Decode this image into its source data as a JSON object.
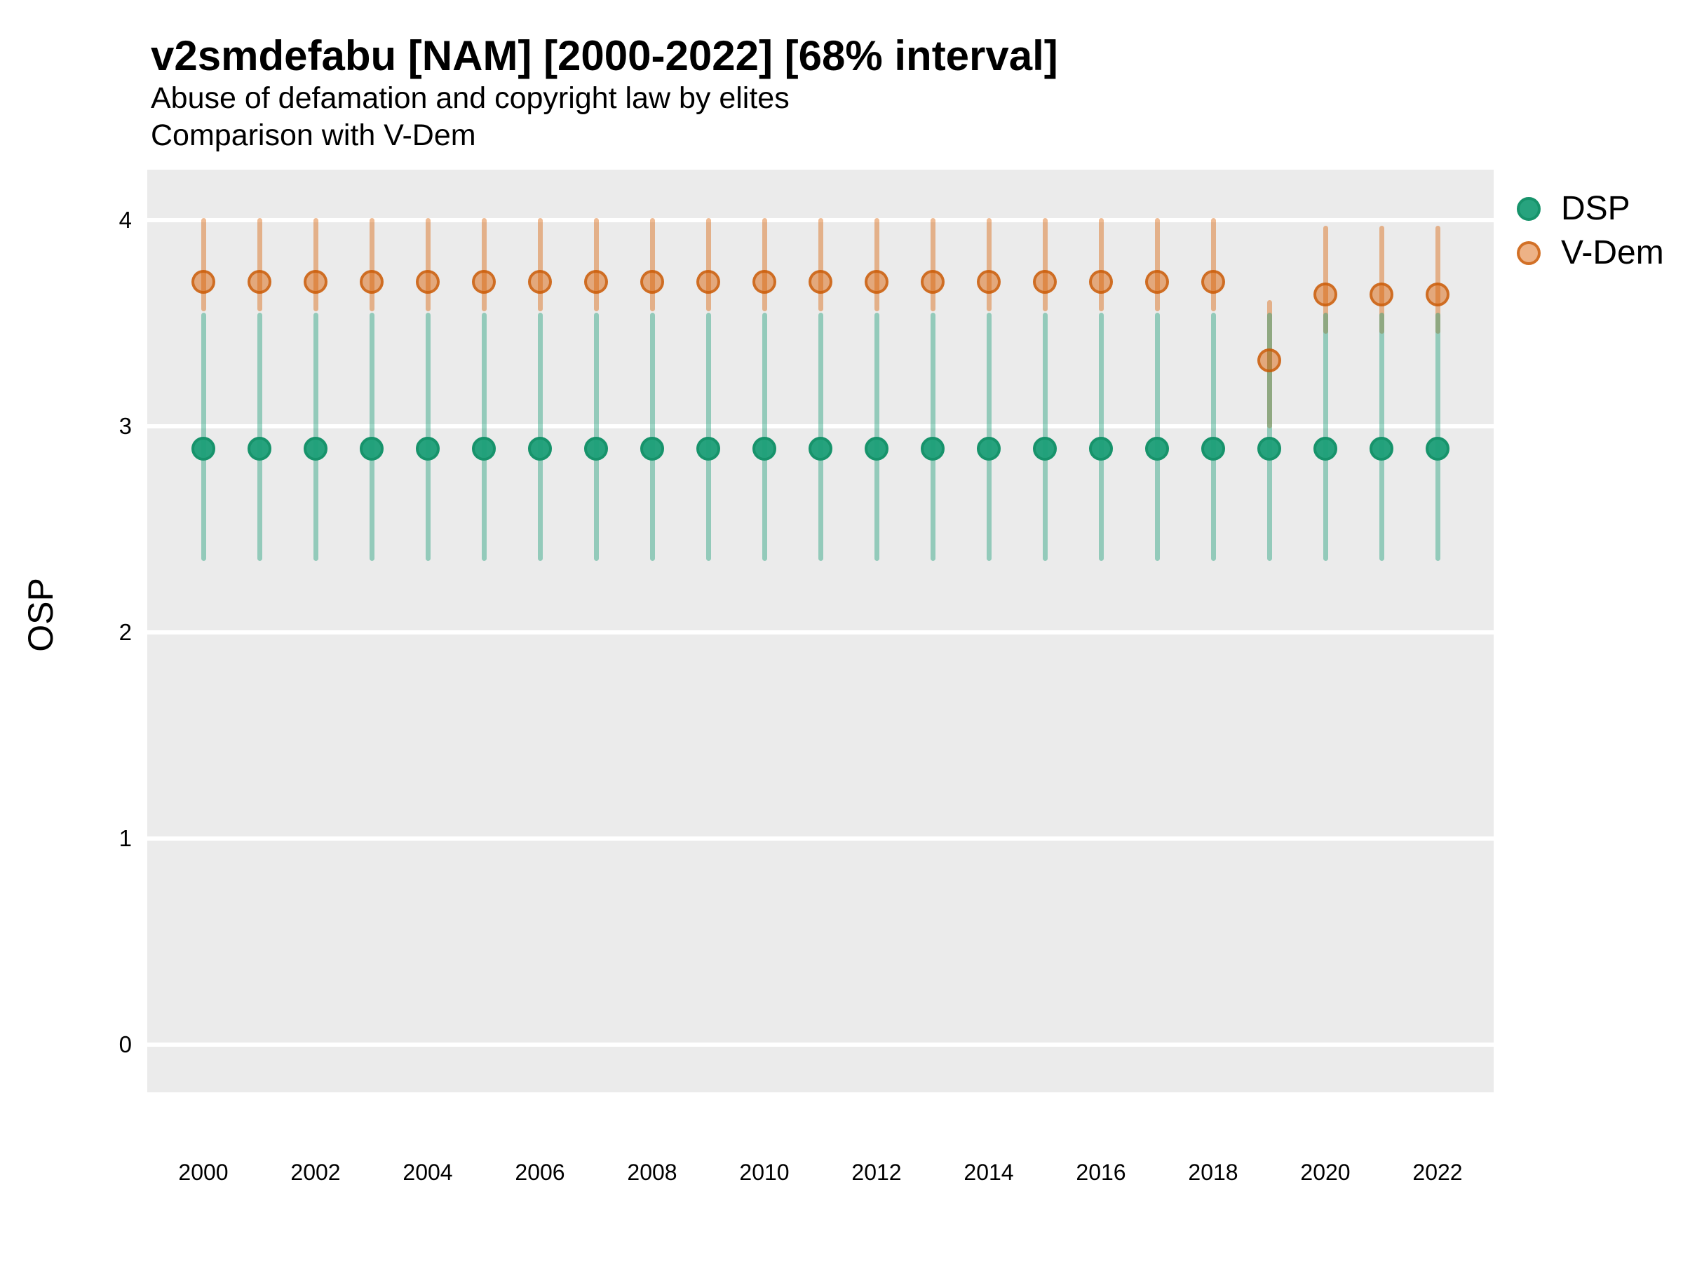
{
  "header": {
    "title": "v2smdefabu [NAM] [2000-2022] [68% interval]",
    "subtitle": "Abuse of defamation and copyright law by elites",
    "subtitle2": "Comparison with V-Dem"
  },
  "chart_data": {
    "type": "scatter",
    "title": "v2smdefabu [NAM] [2000-2022] [68% interval]",
    "subtitle": "Abuse of defamation and copyright law by elites",
    "note": "Comparison with V-Dem",
    "interval": "68%",
    "xlabel": "",
    "ylabel": "OSP",
    "ylim": [
      -0.23,
      4.25
    ],
    "yticks": [
      0,
      1,
      2,
      3,
      4
    ],
    "xticks": [
      2000,
      2002,
      2004,
      2006,
      2008,
      2010,
      2012,
      2014,
      2016,
      2018,
      2020,
      2022
    ],
    "grid": "horizontal-major-white-on-gray",
    "legend_position": "top-right",
    "legend": [
      {
        "label": "DSP",
        "color": "#1B9E77"
      },
      {
        "label": "V-Dem",
        "color": "#D95F02"
      }
    ],
    "colors": {
      "dsp": "#1B9E77",
      "vdem": "#D95F02",
      "panel_bg": "#EBEBEB",
      "gridline": "#FFFFFF"
    },
    "x": [
      2000,
      2001,
      2002,
      2003,
      2004,
      2005,
      2006,
      2007,
      2008,
      2009,
      2010,
      2011,
      2012,
      2013,
      2014,
      2015,
      2016,
      2017,
      2018,
      2019,
      2020,
      2021,
      2022
    ],
    "series": [
      {
        "name": "DSP",
        "est": [
          2.89,
          2.89,
          2.89,
          2.89,
          2.89,
          2.89,
          2.89,
          2.89,
          2.89,
          2.89,
          2.89,
          2.89,
          2.89,
          2.89,
          2.89,
          2.89,
          2.89,
          2.89,
          2.89,
          2.89,
          2.89,
          2.89,
          2.89
        ],
        "lo": [
          2.36,
          2.36,
          2.36,
          2.36,
          2.36,
          2.36,
          2.36,
          2.36,
          2.36,
          2.36,
          2.36,
          2.36,
          2.36,
          2.36,
          2.36,
          2.36,
          2.36,
          2.36,
          2.36,
          2.36,
          2.36,
          2.36,
          2.36
        ],
        "hi": [
          3.54,
          3.54,
          3.54,
          3.54,
          3.54,
          3.54,
          3.54,
          3.54,
          3.54,
          3.54,
          3.54,
          3.54,
          3.54,
          3.54,
          3.54,
          3.54,
          3.54,
          3.54,
          3.54,
          3.54,
          3.54,
          3.54,
          3.54
        ]
      },
      {
        "name": "V-Dem",
        "est": [
          3.7,
          3.7,
          3.7,
          3.7,
          3.7,
          3.7,
          3.7,
          3.7,
          3.7,
          3.7,
          3.7,
          3.7,
          3.7,
          3.7,
          3.7,
          3.7,
          3.7,
          3.7,
          3.7,
          3.32,
          3.64,
          3.64,
          3.64
        ],
        "lo": [
          3.57,
          3.57,
          3.57,
          3.57,
          3.57,
          3.57,
          3.57,
          3.57,
          3.57,
          3.57,
          3.57,
          3.57,
          3.57,
          3.57,
          3.57,
          3.57,
          3.57,
          3.57,
          3.57,
          3.0,
          3.46,
          3.46,
          3.46
        ],
        "hi": [
          4.0,
          4.0,
          4.0,
          4.0,
          4.0,
          4.0,
          4.0,
          4.0,
          4.0,
          4.0,
          4.0,
          4.0,
          4.0,
          4.0,
          4.0,
          4.0,
          4.0,
          4.0,
          4.0,
          3.6,
          3.96,
          3.96,
          3.96
        ]
      }
    ]
  }
}
